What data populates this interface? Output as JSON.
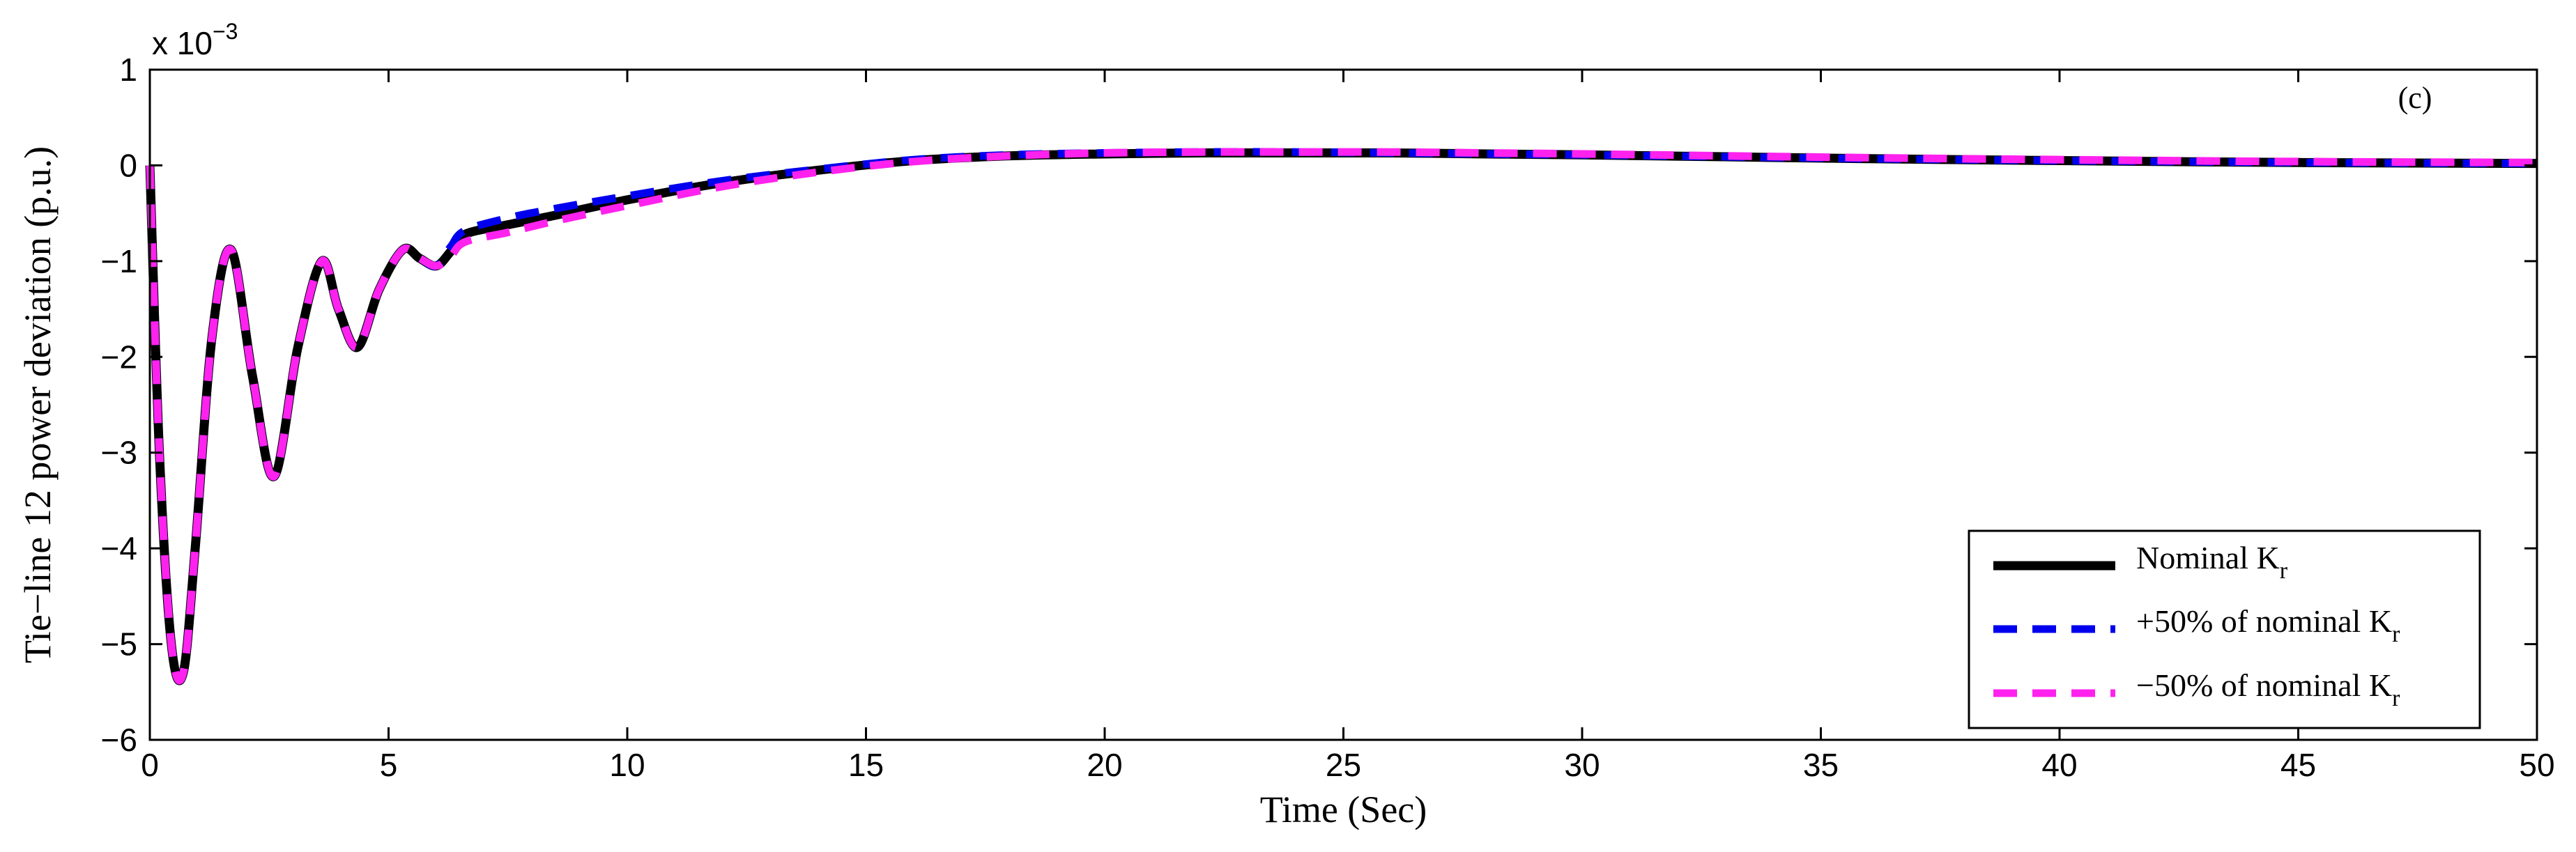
{
  "chart_data": {
    "type": "line",
    "panel_label": "(c)",
    "xlabel": "Time (Sec)",
    "ylabel": "Tie−line 12 power deviation (p.u.)",
    "y_exponent_label": "x 10",
    "y_exponent_power": "−3",
    "xlim": [
      0,
      50
    ],
    "ylim": [
      -6,
      1
    ],
    "xticks": [
      0,
      5,
      10,
      15,
      20,
      25,
      30,
      35,
      40,
      45,
      50
    ],
    "xtick_labels": [
      "0",
      "5",
      "10",
      "15",
      "20",
      "25",
      "30",
      "35",
      "40",
      "45",
      "50"
    ],
    "yticks": [
      1,
      0,
      -1,
      -2,
      -3,
      -4,
      -5,
      -6
    ],
    "ytick_labels": [
      "1",
      "0",
      "−1",
      "−2",
      "−3",
      "−4",
      "−5",
      "−6"
    ],
    "grid": false,
    "legend_position": "bottom-right",
    "series": [
      {
        "name": "Nominal K",
        "name_sub": "r",
        "color": "#000000",
        "style": "solid",
        "x": [
          0,
          0.2,
          0.45,
          0.7,
          0.95,
          1.3,
          1.7,
          2.15,
          2.6,
          3.1,
          3.6,
          3.95,
          4.35,
          4.8,
          5.3,
          5.65,
          6.0,
          6.3,
          6.6,
          7.5,
          8.5,
          10,
          12,
          14,
          16,
          18,
          20,
          22,
          24,
          26,
          28,
          30,
          33,
          36,
          40,
          45,
          50
        ],
        "y": [
          0,
          -3.0,
          -5.0,
          -5.3,
          -4.0,
          -1.8,
          -0.88,
          -2.2,
          -3.25,
          -1.9,
          -1.0,
          -1.5,
          -1.9,
          -1.3,
          -0.88,
          -0.97,
          -1.05,
          -0.9,
          -0.72,
          -0.62,
          -0.52,
          -0.36,
          -0.18,
          -0.05,
          0.05,
          0.1,
          0.12,
          0.13,
          0.13,
          0.13,
          0.12,
          0.11,
          0.09,
          0.07,
          0.05,
          0.03,
          0.02
        ]
      },
      {
        "name": "+50% of nominal K",
        "name_sub": "r",
        "color": "#0000ee",
        "style": "dashed",
        "x": [
          0,
          0.2,
          0.45,
          0.7,
          0.95,
          1.3,
          1.7,
          2.15,
          2.6,
          3.1,
          3.6,
          3.95,
          4.35,
          4.8,
          5.3,
          5.65,
          6.0,
          6.3,
          6.6,
          7.5,
          8.5,
          10,
          12,
          14,
          16,
          18,
          20,
          22,
          24,
          26,
          28,
          30,
          33,
          36,
          40,
          45,
          50
        ],
        "y": [
          0,
          -3.0,
          -5.0,
          -5.3,
          -4.0,
          -1.8,
          -0.88,
          -2.2,
          -3.25,
          -1.9,
          -1.0,
          -1.5,
          -1.9,
          -1.3,
          -0.88,
          -0.97,
          -1.05,
          -0.85,
          -0.68,
          -0.55,
          -0.45,
          -0.32,
          -0.16,
          -0.04,
          0.06,
          0.11,
          0.13,
          0.14,
          0.14,
          0.13,
          0.12,
          0.11,
          0.09,
          0.07,
          0.05,
          0.03,
          0.02
        ]
      },
      {
        "name": "−50% of nominal K",
        "name_sub": "r",
        "color": "#ff22ee",
        "style": "dashed",
        "x": [
          0,
          0.2,
          0.45,
          0.7,
          0.95,
          1.3,
          1.7,
          2.15,
          2.6,
          3.1,
          3.6,
          3.95,
          4.35,
          4.8,
          5.3,
          5.65,
          6.0,
          6.3,
          6.6,
          7.5,
          8.5,
          10,
          12,
          14,
          16,
          18,
          20,
          22,
          24,
          26,
          28,
          30,
          33,
          36,
          40,
          45,
          50
        ],
        "y": [
          0,
          -3.0,
          -5.0,
          -5.3,
          -4.0,
          -1.8,
          -0.88,
          -2.2,
          -3.25,
          -1.9,
          -1.0,
          -1.5,
          -1.9,
          -1.3,
          -0.88,
          -0.97,
          -1.05,
          -0.95,
          -0.8,
          -0.7,
          -0.58,
          -0.42,
          -0.22,
          -0.07,
          0.04,
          0.1,
          0.13,
          0.14,
          0.14,
          0.14,
          0.13,
          0.12,
          0.1,
          0.08,
          0.06,
          0.04,
          0.03
        ]
      }
    ]
  }
}
